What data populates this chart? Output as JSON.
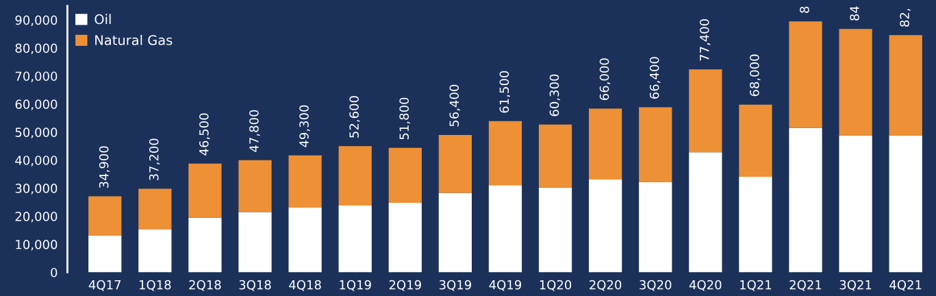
{
  "chart_data": {
    "type": "bar",
    "stacked": true,
    "categories": [
      "4Q17",
      "1Q18",
      "2Q18",
      "3Q18",
      "4Q18",
      "1Q19",
      "2Q19",
      "3Q19",
      "4Q19",
      "1Q20",
      "2Q20",
      "3Q20",
      "4Q20",
      "1Q21",
      "2Q21",
      "3Q21",
      "4Q21"
    ],
    "series": [
      {
        "name": "Oil",
        "color": "#ffffff",
        "values": [
          13200,
          15400,
          19500,
          21500,
          23100,
          23800,
          24800,
          28300,
          31100,
          30200,
          33100,
          32100,
          42800,
          34100,
          51500,
          48800,
          48800
        ]
      },
      {
        "name": "Natural Gas",
        "color": "#ee9035",
        "values": [
          13900,
          14400,
          19300,
          18500,
          18600,
          21200,
          19600,
          20700,
          22800,
          22500,
          25300,
          26800,
          29600,
          25700,
          38000,
          38000,
          35800
        ]
      }
    ],
    "annotations": [
      {
        "text": "34,900",
        "x": "4Q17",
        "y": 27100
      },
      {
        "text": "37,200",
        "x": "1Q18",
        "y": 29800
      },
      {
        "text": "46,500",
        "x": "2Q18",
        "y": 38800
      },
      {
        "text": "47,800",
        "x": "3Q18",
        "y": 40000
      },
      {
        "text": "49,300",
        "x": "4Q18",
        "y": 41700
      },
      {
        "text": "52,600",
        "x": "1Q19",
        "y": 45000
      },
      {
        "text": "51,800",
        "x": "2Q19",
        "y": 44400
      },
      {
        "text": "56,400",
        "x": "3Q19",
        "y": 49000
      },
      {
        "text": "61,500",
        "x": "4Q19",
        "y": 53900
      },
      {
        "text": "60,300",
        "x": "1Q20",
        "y": 52700
      },
      {
        "text": "66,000",
        "x": "2Q20",
        "y": 58400
      },
      {
        "text": "66,400",
        "x": "3Q20",
        "y": 58900
      },
      {
        "text": "77,400",
        "x": "4Q20",
        "y": 72400
      },
      {
        "text": "68,000",
        "x": "1Q21",
        "y": 59800
      },
      {
        "text": "8",
        "x": "2Q21",
        "y": 89500
      },
      {
        "text": "84",
        "x": "3Q21",
        "y": 86800
      },
      {
        "text": "82,",
        "x": "4Q21",
        "y": 84600
      }
    ],
    "ylim": [
      0,
      95000
    ],
    "yticks": [
      {
        "value": 0,
        "label": "0"
      },
      {
        "value": 10000,
        "label": "10,000"
      },
      {
        "value": 20000,
        "label": "20,000"
      },
      {
        "value": 30000,
        "label": "30,000"
      },
      {
        "value": 40000,
        "label": "40,000"
      },
      {
        "value": 50000,
        "label": "50,000"
      },
      {
        "value": 60000,
        "label": "60,000"
      },
      {
        "value": 70000,
        "label": "70,000"
      },
      {
        "value": 80000,
        "label": "80,000"
      },
      {
        "value": 90000,
        "label": "90,000"
      }
    ],
    "grid": false,
    "legend": "top left"
  }
}
